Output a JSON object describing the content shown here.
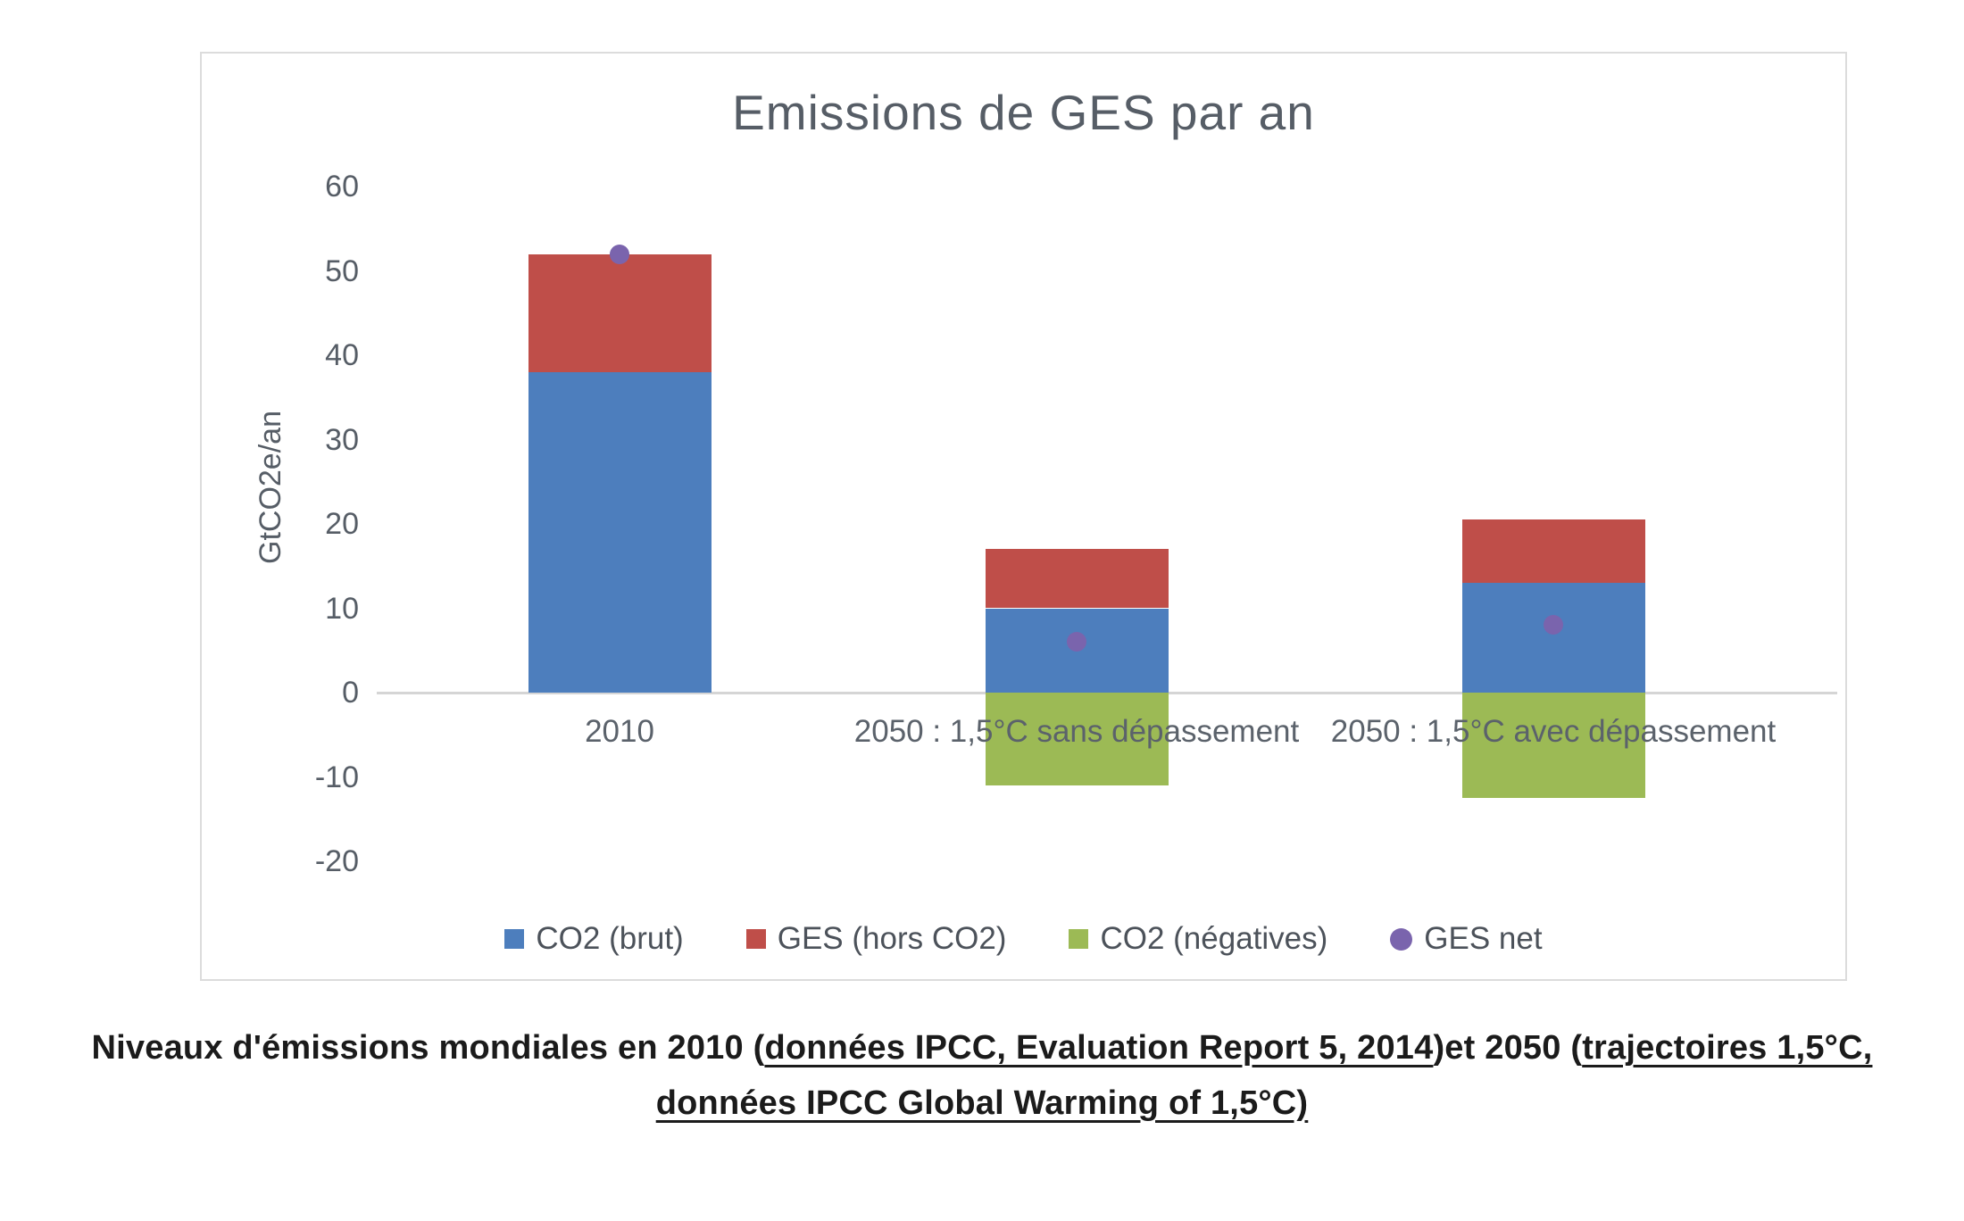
{
  "chart_data": {
    "type": "bar",
    "title": "Emissions de GES par an",
    "ylabel": "GtCO2e/an",
    "ylim": [
      -20,
      60
    ],
    "ytick_step": 10,
    "yticks": [
      60,
      50,
      40,
      30,
      20,
      10,
      0,
      -10,
      -20
    ],
    "grid": false,
    "legend_position": "bottom",
    "categories": [
      "2010",
      "2050 : 1,5°C sans dépassement",
      "2050 : 1,5°C avec dépassement"
    ],
    "series": [
      {
        "name": "CO2 (brut)",
        "type": "bar",
        "color": "#4d7ebd",
        "values": [
          38,
          10,
          13
        ]
      },
      {
        "name": "GES (hors CO2)",
        "type": "bar",
        "color": "#bf4e49",
        "values": [
          14,
          7,
          7.5
        ]
      },
      {
        "name": "CO2 (négatives)",
        "type": "bar",
        "color": "#9cba55",
        "values": [
          0,
          -11,
          -12.5
        ]
      },
      {
        "name": "GES net",
        "type": "point",
        "color": "#7a64ad",
        "values": [
          52,
          6,
          8
        ]
      }
    ]
  },
  "caption": {
    "segments": [
      {
        "text": "Niveaux d'émissions mondiales en 2010 (",
        "link": false
      },
      {
        "text": "données IPCC, Evaluation Report 5, 2014",
        "link": true
      },
      {
        "text": ")et 2050 (",
        "link": false
      },
      {
        "text": "trajectoires 1,5°C, données IPCC Global Warming of 1,5°C)",
        "link": true
      }
    ]
  },
  "colors": {
    "text_gray": "#565d66",
    "axis_line": "#d5d5d5",
    "panel_border": "#dcdcdc",
    "caption_text": "#1b1b1b"
  }
}
